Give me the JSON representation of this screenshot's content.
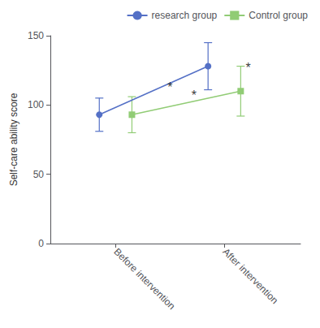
{
  "chart_data": {
    "type": "line",
    "ylabel": "Self-care ability score",
    "xlim": [
      0.4,
      2.7
    ],
    "xticks": [
      {
        "value": 1,
        "label": "Before intervention"
      },
      {
        "value": 2,
        "label": "After intervention"
      }
    ],
    "ylim": [
      0,
      150
    ],
    "yticks": [
      0,
      50,
      100,
      150
    ],
    "grid": false,
    "legend": "upper right",
    "series": [
      {
        "name": "research group",
        "x": [
          0.85,
          1.85
        ],
        "values": [
          93,
          128
        ],
        "yerr": [
          12,
          17
        ],
        "marker": "circle",
        "line_style": "solid"
      },
      {
        "name": "Control group",
        "x": [
          1.15,
          2.15
        ],
        "values": [
          93,
          110
        ],
        "yerr": [
          13,
          18
        ],
        "marker": "square",
        "line_style": "solid"
      }
    ],
    "annotations": [
      {
        "text": "*",
        "x": 1.5,
        "y": 108
      },
      {
        "text": "*",
        "x": 1.72,
        "y": 102
      },
      {
        "text": "*",
        "x": 2.22,
        "y": 122
      }
    ]
  }
}
